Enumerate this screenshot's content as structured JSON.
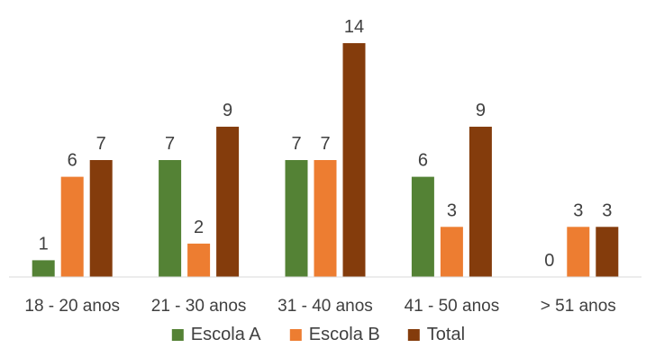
{
  "chart_data": {
    "type": "bar",
    "title": "",
    "xlabel": "",
    "ylabel": "",
    "ylim": [
      0,
      14
    ],
    "grid": false,
    "legend_position": "bottom",
    "categories": [
      "18 - 20 anos",
      "21 - 30 anos",
      "31 - 40 anos",
      "41 - 50 anos",
      "> 51 anos"
    ],
    "series": [
      {
        "name": "Escola A",
        "color": "#548235",
        "values": [
          1,
          7,
          7,
          6,
          0
        ]
      },
      {
        "name": "Escola B",
        "color": "#ED7D31",
        "values": [
          6,
          2,
          7,
          3,
          3
        ]
      },
      {
        "name": "Total",
        "color": "#843C0C",
        "values": [
          7,
          9,
          14,
          9,
          3
        ]
      }
    ]
  }
}
